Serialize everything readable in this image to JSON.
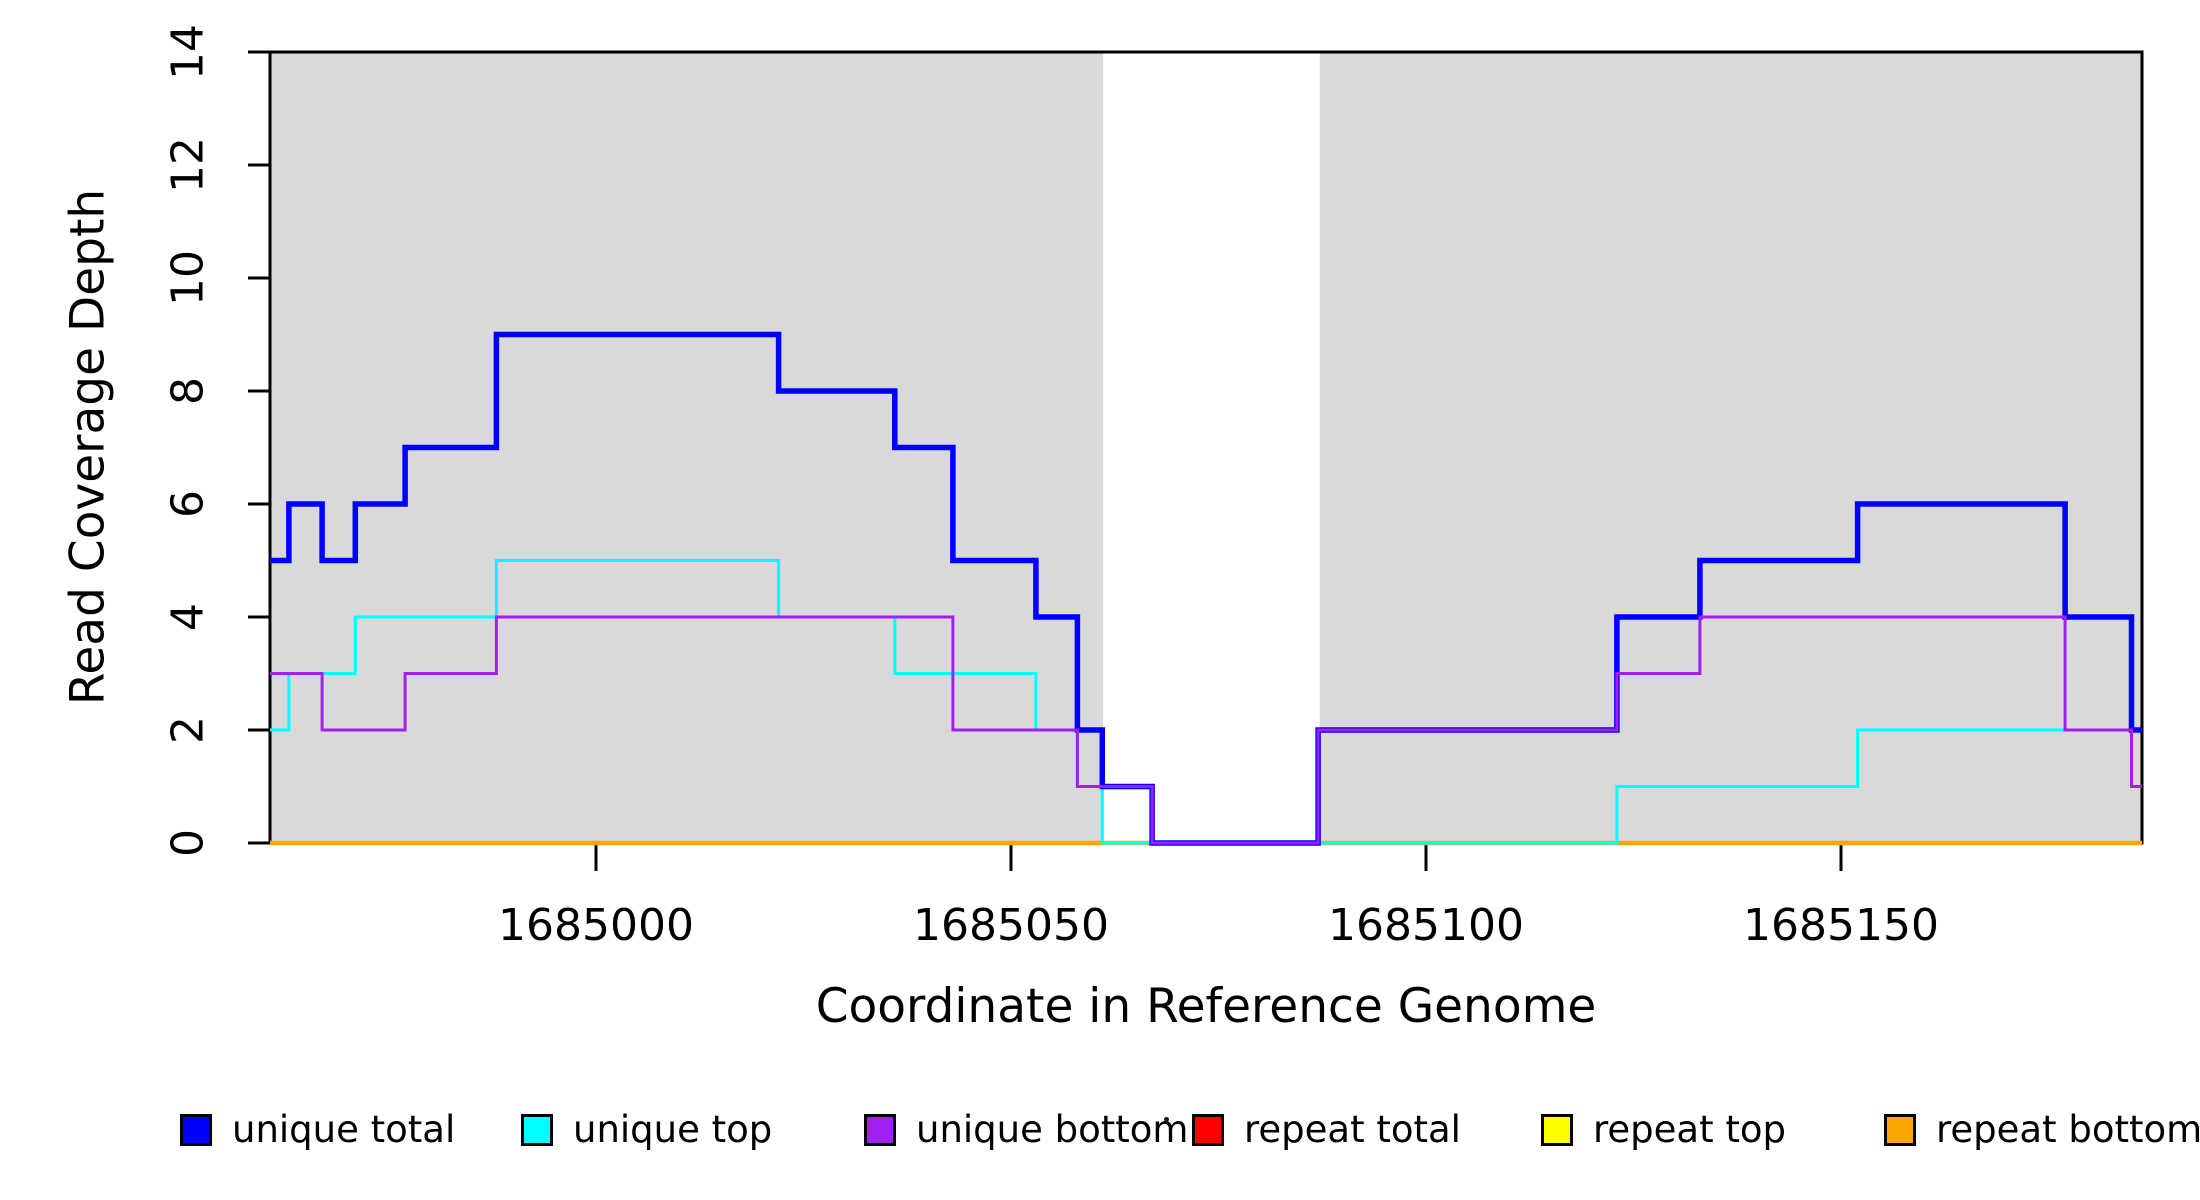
{
  "chart_data": {
    "type": "line",
    "subtype": "step-coverage-plot",
    "title": "",
    "x_axis": {
      "label": "Coordinate in Reference Genome",
      "ticks": [
        1685000,
        1685050,
        1685100,
        1685150
      ],
      "range": [
        1684960.7,
        1685186.3
      ],
      "grid": false
    },
    "y_axis": {
      "label": "Read Coverage Depth",
      "ticks": [
        0,
        2,
        4,
        6,
        8,
        10,
        12,
        14
      ],
      "range": [
        0,
        14
      ],
      "grid": false
    },
    "shaded_regions": [
      {
        "from": 1684960.7,
        "to": 1685061.1,
        "color": "#D9D9D9"
      },
      {
        "from": 1685087.2,
        "to": 1685186.3,
        "color": "#D9D9D9"
      }
    ],
    "series": [
      {
        "name": "repeat total",
        "color": "#FF0000",
        "width": 2,
        "steps": [
          [
            1684961,
            0
          ]
        ]
      },
      {
        "name": "repeat top",
        "color": "#FFFF00",
        "width": 2,
        "steps": [
          [
            1684961,
            0
          ]
        ]
      },
      {
        "name": "repeat bottom",
        "color": "#FFA500",
        "width": 4.5,
        "steps": [
          [
            1684961,
            0
          ]
        ]
      },
      {
        "name": "unique top",
        "color": "#00FFFF",
        "width": 3,
        "steps": [
          [
            1684961,
            2
          ],
          [
            1684963,
            3
          ],
          [
            1684971,
            4
          ],
          [
            1684988,
            5
          ],
          [
            1685022,
            4
          ],
          [
            1685036,
            3
          ],
          [
            1685053,
            2
          ],
          [
            1685058,
            1
          ],
          [
            1685061,
            0
          ],
          [
            1685123,
            1
          ],
          [
            1685152,
            2
          ]
        ]
      },
      {
        "name": "unique total",
        "color": "#0000FF",
        "width": 5.5,
        "steps": [
          [
            1684961,
            5
          ],
          [
            1684963,
            6
          ],
          [
            1684967,
            5
          ],
          [
            1684971,
            6
          ],
          [
            1684977,
            7
          ],
          [
            1684988,
            9
          ],
          [
            1685022,
            8
          ],
          [
            1685036,
            7
          ],
          [
            1685043,
            5
          ],
          [
            1685053,
            4
          ],
          [
            1685058,
            2
          ],
          [
            1685061,
            1
          ],
          [
            1685067,
            0
          ],
          [
            1685087,
            2
          ],
          [
            1685123,
            4
          ],
          [
            1685133,
            5
          ],
          [
            1685152,
            6
          ],
          [
            1685177,
            4
          ],
          [
            1685185,
            2
          ]
        ]
      },
      {
        "name": "unique bottom",
        "color": "#A020F0",
        "width": 3,
        "steps": [
          [
            1684961,
            3
          ],
          [
            1684967,
            2
          ],
          [
            1684977,
            3
          ],
          [
            1684988,
            4
          ],
          [
            1685043,
            2
          ],
          [
            1685058,
            1
          ],
          [
            1685067,
            0
          ],
          [
            1685087,
            2
          ],
          [
            1685123,
            3
          ],
          [
            1685133,
            4
          ],
          [
            1685177,
            2
          ],
          [
            1685185,
            1
          ]
        ]
      }
    ],
    "legend": {
      "position": "bottom",
      "items": [
        {
          "label": "unique total",
          "color": "#0000FF"
        },
        {
          "label": "unique top",
          "color": "#00FFFF"
        },
        {
          "label": "unique bottom",
          "color": "#A020F0"
        },
        {
          "label": "repeat total",
          "color": "#FF0000"
        },
        {
          "label": "repeat top",
          "color": "#FFFF00"
        },
        {
          "label": "repeat bottom",
          "color": "#FFA500"
        }
      ]
    },
    "colors": {
      "background": "#FFFFFF",
      "shaded_region": "#D9D9D9",
      "axis": "#000000"
    }
  }
}
